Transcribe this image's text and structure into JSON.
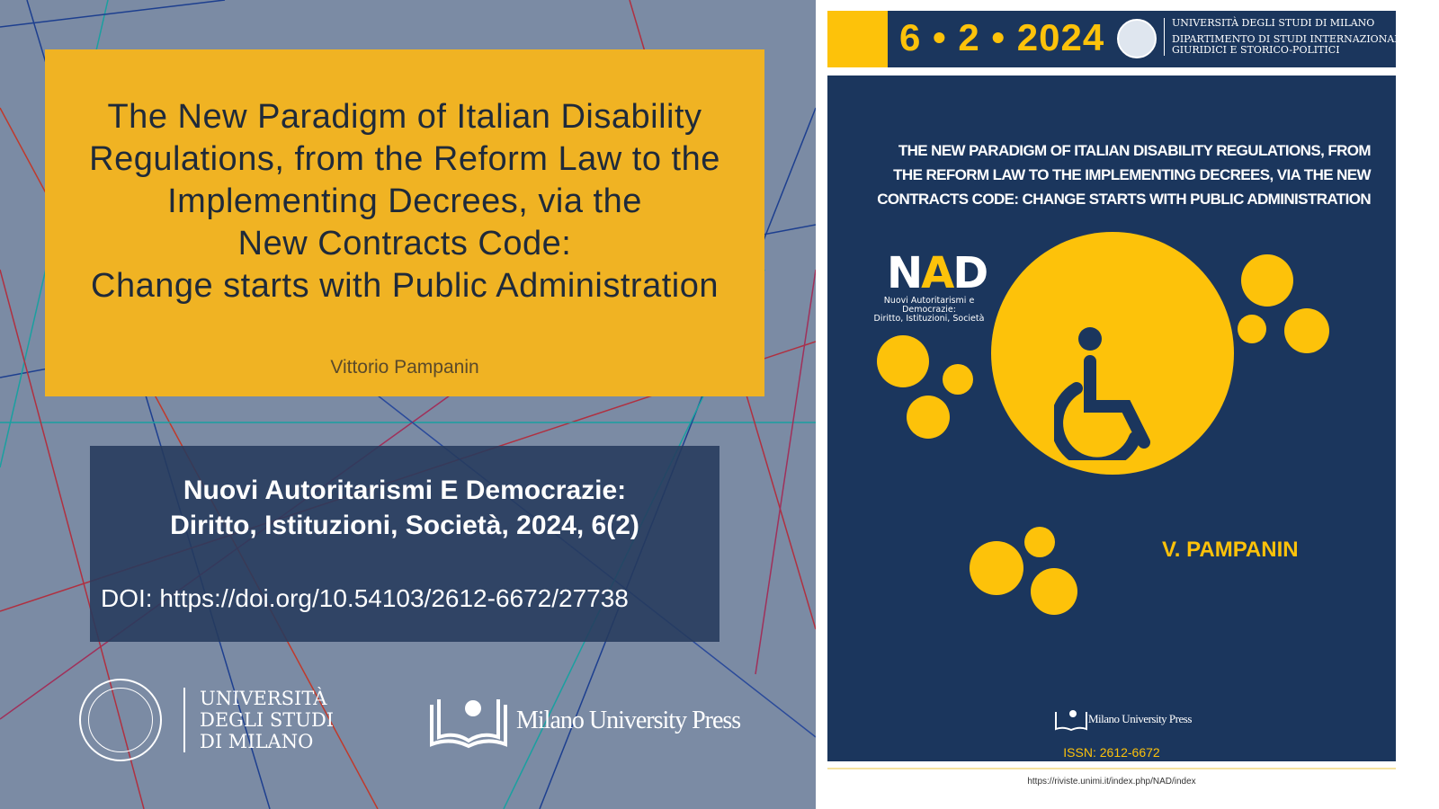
{
  "slide": {
    "title": "The New Paradigm of Italian Disability Regulations, from the Reform Law to the Implementing Decrees, via the New Contracts Code: Change starts with Public Administration",
    "title_lines": [
      "The New Paradigm of Italian Disability",
      "Regulations, from the Reform Law to the",
      "Implementing Decrees, via the",
      "New Contracts Code:",
      "Change starts with Public Administration"
    ],
    "author": "Vittorio Pampanin",
    "journal_lines": [
      "Nuovi Autoritarismi E Democrazie:",
      "Diritto, Istituzioni, Società, 2024, 6(2)"
    ],
    "doi": "DOI: https://doi.org/10.54103/2612-6672/27738",
    "university_lines": [
      "UNIVERSITÀ",
      "DEGLI STUDI",
      "DI MILANO"
    ],
    "press": "Milano University Press"
  },
  "cover": {
    "issue": "6 • 2 • 2024",
    "university": "UNIVERSITÀ DEGLI STUDI DI MILANO",
    "department_lines": [
      "DIPARTIMENTO DI STUDI INTERNAZIONALI,",
      "GIURIDICI E STORICO-POLITICI"
    ],
    "title_lines": [
      "THE NEW PARADIGM OF ITALIAN DISABILITY REGULATIONS, FROM",
      "THE REFORM LAW TO THE IMPLEMENTING DECREES, VIA THE NEW",
      "CONTRACTS CODE: CHANGE STARTS WITH PUBLIC ADMINISTRATION"
    ],
    "journal_logo": "NAD",
    "journal_logo_sub": [
      "Nuovi Autoritarismi e Democrazie:",
      "Diritto, Istituzioni, Società"
    ],
    "author": "V. PAMPANIN",
    "press": "Milano University Press",
    "issn": "ISSN: 2612-6672",
    "url": "https://riviste.unimi.it/index.php/NAD/index",
    "icon": "wheelchair-icon"
  },
  "colors": {
    "yellow": "#f0b323",
    "cover_blue": "#1b365d",
    "cover_yellow": "#fdc20a",
    "background": "#7b8ba4"
  }
}
